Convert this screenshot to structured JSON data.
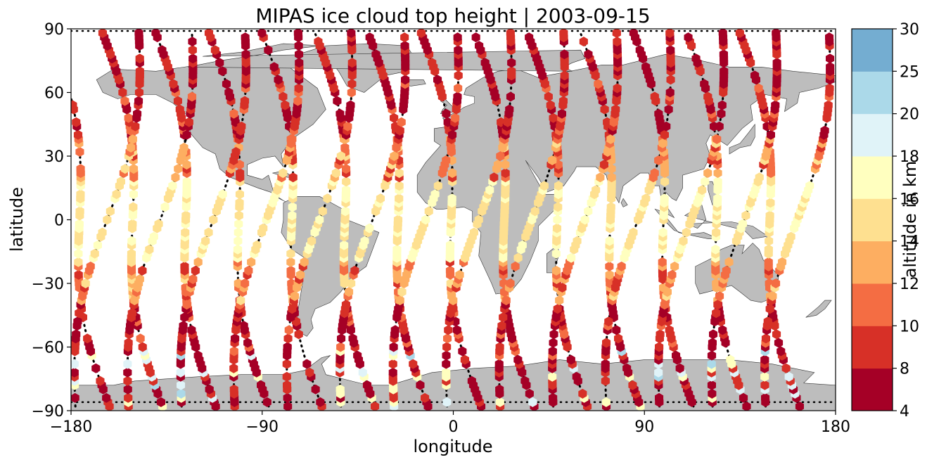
{
  "chart_data": {
    "type": "scatter",
    "title": "MIPAS ice cloud top height | 2003-09-15",
    "xlabel": "longitude",
    "ylabel": "latitude",
    "xlim": [
      -180,
      180
    ],
    "ylim": [
      -90,
      90
    ],
    "xticks": [
      -180,
      -90,
      0,
      90,
      180
    ],
    "xtick_labels": [
      "−180",
      "−90",
      "0",
      "90",
      "180"
    ],
    "yticks": [
      -90,
      -60,
      -30,
      0,
      30,
      60,
      90
    ],
    "ytick_labels": [
      "−90",
      "−60",
      "−30",
      "0",
      "30",
      "60",
      "90"
    ],
    "colorbar": {
      "label": "altitude in km",
      "bounds": [
        4,
        8,
        10,
        12,
        14,
        16,
        18,
        20,
        25,
        30
      ],
      "tick_labels": [
        "4",
        "8",
        "10",
        "12",
        "14",
        "16",
        "18",
        "20",
        "25",
        "30"
      ],
      "colors": [
        "#a50026",
        "#d73027",
        "#f46d43",
        "#fdae61",
        "#fee090",
        "#ffffbf",
        "#e0f3f8",
        "#abd9e9",
        "#74add1",
        "#4575b4",
        "#313695"
      ]
    },
    "background": {
      "land": "#bdbdbd",
      "coast": "#333333",
      "ocean": "#ffffff",
      "track": "#000000"
    },
    "orbits": [
      {
        "lon0": -176,
        "slope": -0.165
      },
      {
        "lon0": -151,
        "slope": -0.165
      },
      {
        "lon0": -126,
        "slope": -0.165
      },
      {
        "lon0": -101,
        "slope": -0.165
      },
      {
        "lon0": -76,
        "slope": -0.165
      },
      {
        "lon0": -51,
        "slope": -0.165
      },
      {
        "lon0": -26,
        "slope": -0.165
      },
      {
        "lon0": -1,
        "slope": -0.165
      },
      {
        "lon0": 24,
        "slope": -0.165
      },
      {
        "lon0": 49,
        "slope": -0.165
      },
      {
        "lon0": 74,
        "slope": -0.165
      },
      {
        "lon0": 99,
        "slope": -0.165
      },
      {
        "lon0": 124,
        "slope": -0.165
      },
      {
        "lon0": 149,
        "slope": -0.165
      },
      {
        "lon0": -163,
        "slope": 0.165
      },
      {
        "lon0": -138,
        "slope": 0.165
      },
      {
        "lon0": -113,
        "slope": 0.165
      },
      {
        "lon0": -88,
        "slope": 0.165
      },
      {
        "lon0": -63,
        "slope": 0.165
      },
      {
        "lon0": -38,
        "slope": 0.165
      },
      {
        "lon0": -13,
        "slope": 0.165
      },
      {
        "lon0": 12,
        "slope": 0.165
      },
      {
        "lon0": 37,
        "slope": 0.165
      },
      {
        "lon0": 62,
        "slope": 0.165
      },
      {
        "lon0": 87,
        "slope": 0.165
      },
      {
        "lon0": 112,
        "slope": 0.165
      },
      {
        "lon0": 137,
        "slope": 0.165
      },
      {
        "lon0": 162,
        "slope": 0.165
      }
    ]
  }
}
